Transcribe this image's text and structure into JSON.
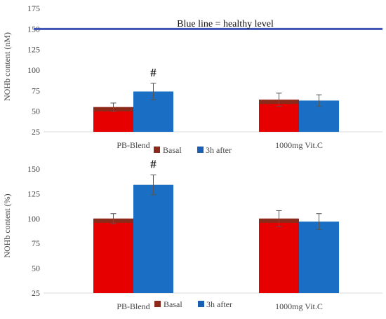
{
  "chart_data": [
    {
      "type": "bar",
      "categories": [
        "PB-Blend",
        "1000mg Vit.C"
      ],
      "series": [
        {
          "name": "Basal",
          "values": [
            55,
            64
          ],
          "errors": [
            5,
            8
          ]
        },
        {
          "name": "3h after",
          "values": [
            74,
            63
          ],
          "errors": [
            10,
            7
          ]
        }
      ],
      "ylabel": "NOHb content (nM)",
      "ylim": [
        25,
        175
      ],
      "yticks": [
        25,
        50,
        75,
        100,
        125,
        150,
        175
      ],
      "grid": false,
      "legend": "bottom-center",
      "reference_line": {
        "value": 150,
        "label": "Blue line = healthy level",
        "color": "#3f53b5"
      },
      "annotations": [
        {
          "text": "#",
          "category": "PB-Blend",
          "series": "3h after"
        }
      ],
      "colors": {
        "Basal": "#e60000",
        "3h after": "#1a6fc4",
        "cap": "#8b2a1a",
        "legend_basal": "#8b2a1a",
        "legend_after": "#1a5fb4"
      }
    },
    {
      "type": "bar",
      "categories": [
        "PB-Blend",
        "1000mg Vit.C"
      ],
      "series": [
        {
          "name": "Basal",
          "values": [
            100,
            100
          ],
          "errors": [
            5,
            8
          ]
        },
        {
          "name": "3h after",
          "values": [
            134,
            97
          ],
          "errors": [
            10,
            8
          ]
        }
      ],
      "ylabel": "NOHb content (%)",
      "ylim": [
        25,
        150
      ],
      "yticks": [
        25,
        50,
        75,
        100,
        125,
        150
      ],
      "grid": false,
      "legend": "bottom-center",
      "annotations": [
        {
          "text": "#",
          "category": "PB-Blend",
          "series": "3h after"
        }
      ],
      "colors": {
        "Basal": "#e60000",
        "3h after": "#1a6fc4",
        "cap": "#8b2a1a",
        "legend_basal": "#8b2a1a",
        "legend_after": "#1a5fb4"
      }
    }
  ]
}
